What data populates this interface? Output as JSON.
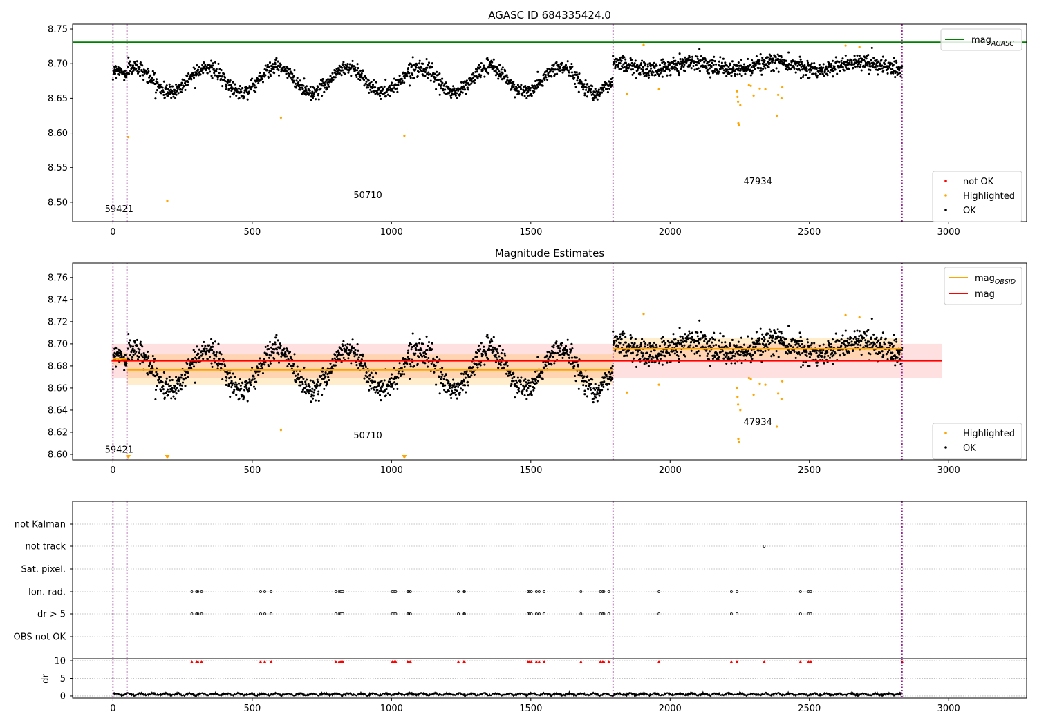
{
  "figure": {
    "top_title": "AGASC ID 684335424.0",
    "mid_title": "Magnitude Estimates"
  },
  "chart_data": [
    {
      "id": "panel_top",
      "type": "scatter",
      "title": "AGASC ID 684335424.0",
      "xlim": [
        -145,
        3280
      ],
      "ylim": [
        8.472,
        8.757
      ],
      "xticks": [
        0,
        500,
        1000,
        1500,
        2000,
        2500,
        3000
      ],
      "yticks": [
        8.5,
        8.55,
        8.6,
        8.65,
        8.7,
        8.75
      ],
      "ytick_labels": [
        "8.50",
        "8.55",
        "8.60",
        "8.65",
        "8.70",
        "8.75"
      ],
      "mag_agasc": 8.731,
      "obs_boundaries": [
        0,
        50,
        1795,
        2833
      ],
      "obs_labels": [
        {
          "text": "59421",
          "x": 22,
          "y": 8.486
        },
        {
          "text": "50710",
          "x": 915,
          "y": 8.506
        },
        {
          "text": "47934",
          "x": 2315,
          "y": 8.526
        }
      ],
      "segments": [
        {
          "x0": 0,
          "x1": 50,
          "base": 8.688,
          "amp": 0.004,
          "period": 60,
          "noise": 0.004,
          "count": 50
        },
        {
          "x0": 50,
          "x1": 1795,
          "base": 8.677,
          "amp": 0.018,
          "period": 255,
          "noise": 0.0055,
          "count": 1350
        },
        {
          "x0": 1795,
          "x1": 2833,
          "base": 8.697,
          "amp": 0.006,
          "period": 300,
          "noise": 0.0058,
          "count": 860
        }
      ],
      "highlighted_points": [
        [
          55,
          8.594
        ],
        [
          195,
          8.502
        ],
        [
          603,
          8.622
        ],
        [
          1046,
          8.596
        ],
        [
          1845,
          8.656
        ],
        [
          1905,
          8.727
        ],
        [
          1960,
          8.663
        ],
        [
          2240,
          8.66
        ],
        [
          2242,
          8.652
        ],
        [
          2244,
          8.645
        ],
        [
          2245,
          8.614
        ],
        [
          2247,
          8.611
        ],
        [
          2252,
          8.64
        ],
        [
          2283,
          8.669
        ],
        [
          2290,
          8.668
        ],
        [
          2300,
          8.654
        ],
        [
          2322,
          8.664
        ],
        [
          2342,
          8.663
        ],
        [
          2383,
          8.625
        ],
        [
          2388,
          8.655
        ],
        [
          2400,
          8.65
        ],
        [
          2403,
          8.666
        ],
        [
          2630,
          8.726
        ],
        [
          2680,
          8.724
        ]
      ],
      "legend_upper": [
        {
          "label": "mag",
          "sub": "AGASC",
          "color": "#008000"
        }
      ],
      "legend_lower": [
        {
          "label": "not OK",
          "color": "#ff0000"
        },
        {
          "label": "Highlighted",
          "color": "#ffa500"
        },
        {
          "label": "OK",
          "color": "#000000"
        }
      ]
    },
    {
      "id": "panel_mid",
      "type": "scatter",
      "title": "Magnitude Estimates",
      "xlim": [
        -145,
        3280
      ],
      "ylim": [
        8.595,
        8.773
      ],
      "xticks": [
        0,
        500,
        1000,
        1500,
        2000,
        2500,
        3000
      ],
      "yticks": [
        8.6,
        8.62,
        8.64,
        8.66,
        8.68,
        8.7,
        8.72,
        8.74,
        8.76
      ],
      "ytick_labels": [
        "8.60",
        "8.62",
        "8.64",
        "8.66",
        "8.68",
        "8.70",
        "8.72",
        "8.74",
        "8.76"
      ],
      "mag": 8.6845,
      "mag_band": [
        8.669,
        8.7
      ],
      "mag_band_x": [
        -5,
        2975
      ],
      "obsid_means": [
        {
          "x0": 0,
          "x1": 50,
          "mean": 8.6865,
          "band": [
            8.681,
            8.692
          ]
        },
        {
          "x0": 50,
          "x1": 1795,
          "mean": 8.6765,
          "band": [
            8.6625,
            8.6905
          ]
        },
        {
          "x0": 1795,
          "x1": 2833,
          "mean": 8.6955,
          "band": [
            8.686,
            8.705
          ]
        }
      ],
      "obs_boundaries": [
        0,
        50,
        1795,
        2833
      ],
      "obs_labels": [
        {
          "text": "59421",
          "x": 22,
          "y": 8.6015
        },
        {
          "text": "50710",
          "x": 915,
          "y": 8.6145
        },
        {
          "text": "47934",
          "x": 2315,
          "y": 8.6265
        }
      ],
      "offscale_markers": [
        55,
        195,
        1046
      ],
      "legend_upper": [
        {
          "label": "mag",
          "sub": "OBSID",
          "color": "#ffa500"
        },
        {
          "label": "mag",
          "sub": "",
          "color": "#ff0000"
        }
      ],
      "legend_lower": [
        {
          "label": "Highlighted",
          "color": "#ffa500"
        },
        {
          "label": "OK",
          "color": "#000000"
        }
      ]
    },
    {
      "id": "panel_flags",
      "type": "scatter",
      "xlim": [
        -145,
        3280
      ],
      "categories": [
        "OBS not OK",
        "dr > 5",
        "Ion. rad.",
        "Sat. pixel.",
        "not track",
        "not Kalman"
      ],
      "flag_rows": {
        "dr > 5": [
          283,
          300,
          305,
          318,
          530,
          545,
          568,
          800,
          812,
          818,
          825,
          1003,
          1010,
          1015,
          1058,
          1062,
          1068,
          1240,
          1258,
          1262,
          1490,
          1495,
          1502,
          1520,
          1530,
          1548,
          1680,
          1750,
          1758,
          1762,
          1780,
          1960,
          2220,
          2240,
          2468,
          2497,
          2505
        ],
        "Ion. rad.": [
          283,
          300,
          305,
          318,
          530,
          545,
          568,
          800,
          812,
          818,
          825,
          1003,
          1010,
          1015,
          1058,
          1062,
          1068,
          1240,
          1258,
          1262,
          1490,
          1495,
          1502,
          1520,
          1530,
          1548,
          1680,
          1750,
          1758,
          1762,
          1780,
          1960,
          2220,
          2240,
          2468,
          2497,
          2505
        ],
        "not track": [
          2338
        ]
      },
      "obs_boundaries": [
        0,
        50,
        1795,
        2833
      ]
    },
    {
      "id": "panel_dr",
      "type": "line",
      "ylabel": "dr",
      "xlim": [
        -145,
        3280
      ],
      "ylim": [
        -0.6,
        10.6
      ],
      "xticks": [
        0,
        500,
        1000,
        1500,
        2000,
        2500,
        3000
      ],
      "yticks": [
        0,
        5,
        10
      ],
      "ytick_labels": [
        "0",
        "5",
        "10"
      ],
      "dr_base": 0.5,
      "dr_cap": 10,
      "capped_points": [
        283,
        300,
        305,
        318,
        530,
        545,
        568,
        800,
        812,
        818,
        825,
        1003,
        1010,
        1015,
        1058,
        1062,
        1068,
        1240,
        1258,
        1262,
        1490,
        1495,
        1502,
        1520,
        1530,
        1548,
        1680,
        1750,
        1758,
        1762,
        1780,
        1960,
        2220,
        2240,
        2338,
        2468,
        2497,
        2505,
        2833
      ],
      "obs_boundaries": [
        0,
        50,
        1795,
        2833
      ]
    }
  ]
}
